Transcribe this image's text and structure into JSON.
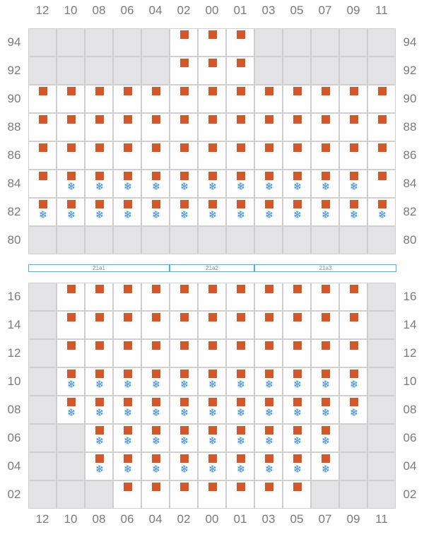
{
  "columns": [
    "12",
    "10",
    "08",
    "06",
    "04",
    "02",
    "00",
    "01",
    "03",
    "05",
    "07",
    "09",
    "11"
  ],
  "icons": {
    "power": "power-square-icon",
    "cooling": "snowflake-icon"
  },
  "colors": {
    "power": "#d4572a",
    "cooling": "#3d8fd6",
    "stack_border": "#3fb6da",
    "inactive": "#e4e4e6"
  },
  "upper_block": {
    "rows": [
      {
        "label": "94",
        "active": [
          0,
          0,
          0,
          0,
          0,
          1,
          1,
          1,
          0,
          0,
          0,
          0,
          0
        ],
        "power": [
          0,
          0,
          0,
          0,
          0,
          1,
          1,
          1,
          0,
          0,
          0,
          0,
          0
        ],
        "cooling": [
          0,
          0,
          0,
          0,
          0,
          0,
          0,
          0,
          0,
          0,
          0,
          0,
          0
        ]
      },
      {
        "label": "92",
        "active": [
          0,
          0,
          0,
          0,
          0,
          1,
          1,
          1,
          0,
          0,
          0,
          0,
          0
        ],
        "power": [
          0,
          0,
          0,
          0,
          0,
          1,
          1,
          1,
          0,
          0,
          0,
          0,
          0
        ],
        "cooling": [
          0,
          0,
          0,
          0,
          0,
          0,
          0,
          0,
          0,
          0,
          0,
          0,
          0
        ]
      },
      {
        "label": "90",
        "active": [
          1,
          1,
          1,
          1,
          1,
          1,
          1,
          1,
          1,
          1,
          1,
          1,
          1
        ],
        "power": [
          1,
          1,
          1,
          1,
          1,
          1,
          1,
          1,
          1,
          1,
          1,
          1,
          1
        ],
        "cooling": [
          0,
          0,
          0,
          0,
          0,
          0,
          0,
          0,
          0,
          0,
          0,
          0,
          0
        ]
      },
      {
        "label": "88",
        "active": [
          1,
          1,
          1,
          1,
          1,
          1,
          1,
          1,
          1,
          1,
          1,
          1,
          1
        ],
        "power": [
          1,
          1,
          1,
          1,
          1,
          1,
          1,
          1,
          1,
          1,
          1,
          1,
          1
        ],
        "cooling": [
          0,
          0,
          0,
          0,
          0,
          0,
          0,
          0,
          0,
          0,
          0,
          0,
          0
        ]
      },
      {
        "label": "86",
        "active": [
          1,
          1,
          1,
          1,
          1,
          1,
          1,
          1,
          1,
          1,
          1,
          1,
          1
        ],
        "power": [
          1,
          1,
          1,
          1,
          1,
          1,
          1,
          1,
          1,
          1,
          1,
          1,
          1
        ],
        "cooling": [
          0,
          0,
          0,
          0,
          0,
          0,
          0,
          0,
          0,
          0,
          0,
          0,
          0
        ]
      },
      {
        "label": "84",
        "active": [
          1,
          1,
          1,
          1,
          1,
          1,
          1,
          1,
          1,
          1,
          1,
          1,
          1
        ],
        "power": [
          1,
          1,
          1,
          1,
          1,
          1,
          1,
          1,
          1,
          1,
          1,
          1,
          1
        ],
        "cooling": [
          0,
          1,
          1,
          1,
          1,
          1,
          1,
          1,
          1,
          1,
          1,
          1,
          0
        ]
      },
      {
        "label": "82",
        "active": [
          1,
          1,
          1,
          1,
          1,
          1,
          1,
          1,
          1,
          1,
          1,
          1,
          1
        ],
        "power": [
          1,
          1,
          1,
          1,
          1,
          1,
          1,
          1,
          1,
          1,
          1,
          1,
          1
        ],
        "cooling": [
          1,
          1,
          1,
          1,
          1,
          1,
          1,
          1,
          1,
          1,
          1,
          1,
          1
        ]
      },
      {
        "label": "80",
        "active": [
          0,
          0,
          0,
          0,
          0,
          0,
          0,
          0,
          0,
          0,
          0,
          0,
          0
        ],
        "power": [
          0,
          0,
          0,
          0,
          0,
          0,
          0,
          0,
          0,
          0,
          0,
          0,
          0
        ],
        "cooling": [
          0,
          0,
          0,
          0,
          0,
          0,
          0,
          0,
          0,
          0,
          0,
          0,
          0
        ]
      }
    ]
  },
  "stacks": [
    {
      "label": "21a1",
      "from": 0,
      "to": 5
    },
    {
      "label": "21a2",
      "from": 5,
      "to": 8
    },
    {
      "label": "21a3",
      "from": 8,
      "to": 13
    }
  ],
  "lower_block": {
    "rows": [
      {
        "label": "16",
        "active": [
          0,
          1,
          1,
          1,
          1,
          1,
          1,
          1,
          1,
          1,
          1,
          1,
          0
        ],
        "power": [
          0,
          1,
          1,
          1,
          1,
          1,
          1,
          1,
          1,
          1,
          1,
          1,
          0
        ],
        "cooling": [
          0,
          0,
          0,
          0,
          0,
          0,
          0,
          0,
          0,
          0,
          0,
          0,
          0
        ]
      },
      {
        "label": "14",
        "active": [
          0,
          1,
          1,
          1,
          1,
          1,
          1,
          1,
          1,
          1,
          1,
          1,
          0
        ],
        "power": [
          0,
          1,
          1,
          1,
          1,
          1,
          1,
          1,
          1,
          1,
          1,
          1,
          0
        ],
        "cooling": [
          0,
          0,
          0,
          0,
          0,
          0,
          0,
          0,
          0,
          0,
          0,
          0,
          0
        ]
      },
      {
        "label": "12",
        "active": [
          0,
          1,
          1,
          1,
          1,
          1,
          1,
          1,
          1,
          1,
          1,
          1,
          0
        ],
        "power": [
          0,
          1,
          1,
          1,
          1,
          1,
          1,
          1,
          1,
          1,
          1,
          1,
          0
        ],
        "cooling": [
          0,
          0,
          0,
          0,
          0,
          0,
          0,
          0,
          0,
          0,
          0,
          0,
          0
        ]
      },
      {
        "label": "10",
        "active": [
          0,
          1,
          1,
          1,
          1,
          1,
          1,
          1,
          1,
          1,
          1,
          1,
          0
        ],
        "power": [
          0,
          1,
          1,
          1,
          1,
          1,
          1,
          1,
          1,
          1,
          1,
          1,
          0
        ],
        "cooling": [
          0,
          1,
          1,
          1,
          1,
          1,
          1,
          1,
          1,
          1,
          1,
          1,
          0
        ]
      },
      {
        "label": "08",
        "active": [
          0,
          1,
          1,
          1,
          1,
          1,
          1,
          1,
          1,
          1,
          1,
          1,
          0
        ],
        "power": [
          0,
          1,
          1,
          1,
          1,
          1,
          1,
          1,
          1,
          1,
          1,
          1,
          0
        ],
        "cooling": [
          0,
          1,
          1,
          1,
          1,
          1,
          1,
          1,
          1,
          1,
          1,
          1,
          0
        ]
      },
      {
        "label": "06",
        "active": [
          0,
          0,
          1,
          1,
          1,
          1,
          1,
          1,
          1,
          1,
          1,
          0,
          0
        ],
        "power": [
          0,
          0,
          1,
          1,
          1,
          1,
          1,
          1,
          1,
          1,
          1,
          0,
          0
        ],
        "cooling": [
          0,
          0,
          1,
          1,
          1,
          1,
          1,
          1,
          1,
          1,
          1,
          0,
          0
        ]
      },
      {
        "label": "04",
        "active": [
          0,
          0,
          1,
          1,
          1,
          1,
          1,
          1,
          1,
          1,
          1,
          0,
          0
        ],
        "power": [
          0,
          0,
          1,
          1,
          1,
          1,
          1,
          1,
          1,
          1,
          1,
          0,
          0
        ],
        "cooling": [
          0,
          0,
          1,
          1,
          1,
          1,
          1,
          1,
          1,
          1,
          1,
          0,
          0
        ]
      },
      {
        "label": "02",
        "active": [
          0,
          0,
          0,
          1,
          1,
          1,
          1,
          1,
          1,
          1,
          0,
          0,
          0
        ],
        "power": [
          0,
          0,
          0,
          1,
          1,
          1,
          1,
          1,
          1,
          1,
          0,
          0,
          0
        ],
        "cooling": [
          0,
          0,
          0,
          0,
          0,
          0,
          0,
          0,
          0,
          0,
          0,
          0,
          0
        ]
      }
    ]
  }
}
